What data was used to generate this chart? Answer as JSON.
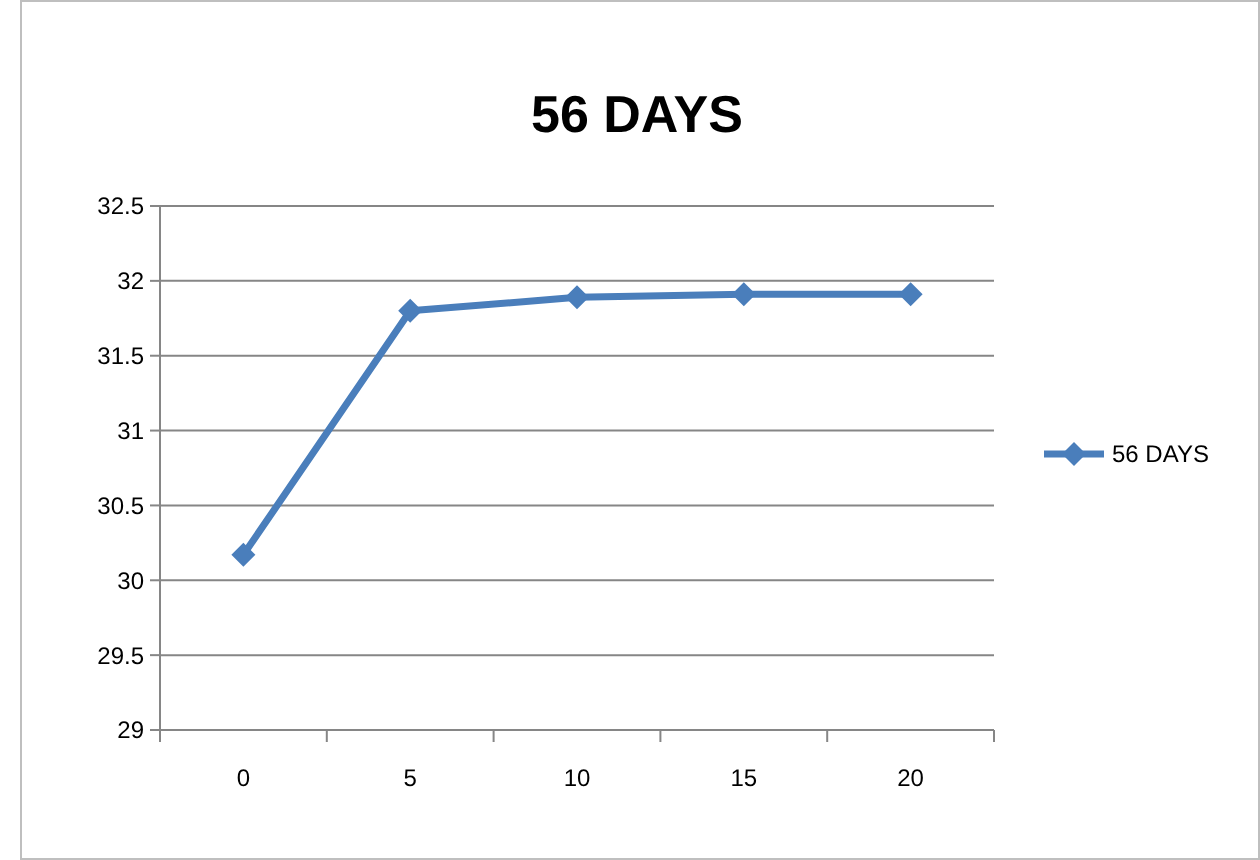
{
  "chart_data": {
    "type": "line",
    "title": "56 DAYS",
    "categories": [
      "0",
      "5",
      "10",
      "15",
      "20"
    ],
    "series": [
      {
        "name": "56 DAYS",
        "color": "#4a7ebb",
        "values": [
          30.17,
          31.8,
          31.89,
          31.91,
          31.91
        ]
      }
    ],
    "ylim": [
      29,
      32.5
    ],
    "yticks": [
      29,
      29.5,
      30,
      30.5,
      31,
      31.5,
      32,
      32.5
    ],
    "grid": "y",
    "legend": "right",
    "marker": "diamond",
    "line_style": "solid"
  }
}
